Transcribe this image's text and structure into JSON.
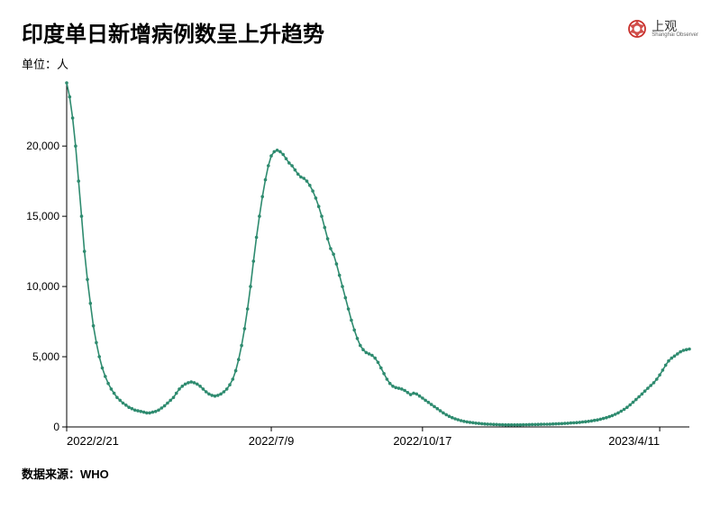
{
  "header": {
    "title": "印度单日新增病例数呈上升趋势",
    "logo_cn": "上观",
    "logo_en": "Shanghai Observer"
  },
  "unit_label": "单位：人",
  "source_label": "数据来源：WHO",
  "chart": {
    "type": "line",
    "line_color": "#2e8b6f",
    "line_width": 1.6,
    "marker_size": 1.8,
    "background_color": "#ffffff",
    "axis_color": "#000000",
    "y": {
      "min": 0,
      "max": 24500,
      "ticks": [
        0,
        5000,
        10000,
        15000,
        20000
      ],
      "tick_labels": [
        "0",
        "5,000",
        "10,000",
        "15,000",
        "20,000"
      ]
    },
    "x": {
      "min": 0,
      "max": 420,
      "ticks": [
        0,
        138,
        240,
        400
      ],
      "tick_labels": [
        "2022/2/21",
        "2022/7/9",
        "2022/10/17",
        "2023/4/11"
      ]
    },
    "data": [
      [
        0,
        24500
      ],
      [
        2,
        23500
      ],
      [
        4,
        22000
      ],
      [
        6,
        20000
      ],
      [
        8,
        17500
      ],
      [
        10,
        15000
      ],
      [
        12,
        12500
      ],
      [
        14,
        10500
      ],
      [
        16,
        8800
      ],
      [
        18,
        7200
      ],
      [
        20,
        6000
      ],
      [
        22,
        5000
      ],
      [
        24,
        4200
      ],
      [
        26,
        3600
      ],
      [
        28,
        3100
      ],
      [
        30,
        2700
      ],
      [
        32,
        2400
      ],
      [
        34,
        2100
      ],
      [
        36,
        1900
      ],
      [
        38,
        1700
      ],
      [
        40,
        1550
      ],
      [
        42,
        1400
      ],
      [
        44,
        1300
      ],
      [
        46,
        1200
      ],
      [
        48,
        1150
      ],
      [
        50,
        1100
      ],
      [
        52,
        1050
      ],
      [
        54,
        1000
      ],
      [
        56,
        1000
      ],
      [
        58,
        1050
      ],
      [
        60,
        1100
      ],
      [
        62,
        1200
      ],
      [
        64,
        1350
      ],
      [
        66,
        1500
      ],
      [
        68,
        1700
      ],
      [
        70,
        1900
      ],
      [
        72,
        2100
      ],
      [
        74,
        2400
      ],
      [
        76,
        2700
      ],
      [
        78,
        2900
      ],
      [
        80,
        3050
      ],
      [
        82,
        3150
      ],
      [
        84,
        3200
      ],
      [
        86,
        3150
      ],
      [
        88,
        3050
      ],
      [
        90,
        2900
      ],
      [
        92,
        2700
      ],
      [
        94,
        2500
      ],
      [
        96,
        2350
      ],
      [
        98,
        2250
      ],
      [
        100,
        2200
      ],
      [
        102,
        2250
      ],
      [
        104,
        2350
      ],
      [
        106,
        2500
      ],
      [
        108,
        2700
      ],
      [
        110,
        3000
      ],
      [
        112,
        3400
      ],
      [
        114,
        4000
      ],
      [
        116,
        4800
      ],
      [
        118,
        5800
      ],
      [
        120,
        7000
      ],
      [
        122,
        8400
      ],
      [
        124,
        10000
      ],
      [
        126,
        11800
      ],
      [
        128,
        13500
      ],
      [
        130,
        15000
      ],
      [
        132,
        16400
      ],
      [
        134,
        17600
      ],
      [
        136,
        18600
      ],
      [
        138,
        19300
      ],
      [
        140,
        19600
      ],
      [
        142,
        19700
      ],
      [
        144,
        19600
      ],
      [
        146,
        19400
      ],
      [
        148,
        19100
      ],
      [
        150,
        18800
      ],
      [
        152,
        18600
      ],
      [
        154,
        18300
      ],
      [
        156,
        18000
      ],
      [
        158,
        17800
      ],
      [
        160,
        17700
      ],
      [
        162,
        17500
      ],
      [
        164,
        17200
      ],
      [
        166,
        16800
      ],
      [
        168,
        16300
      ],
      [
        170,
        15700
      ],
      [
        172,
        15000
      ],
      [
        174,
        14200
      ],
      [
        176,
        13400
      ],
      [
        178,
        12700
      ],
      [
        180,
        12300
      ],
      [
        182,
        11600
      ],
      [
        184,
        10800
      ],
      [
        186,
        10000
      ],
      [
        188,
        9200
      ],
      [
        190,
        8400
      ],
      [
        192,
        7600
      ],
      [
        194,
        6900
      ],
      [
        196,
        6300
      ],
      [
        198,
        5800
      ],
      [
        200,
        5500
      ],
      [
        202,
        5300
      ],
      [
        204,
        5200
      ],
      [
        206,
        5100
      ],
      [
        208,
        4900
      ],
      [
        210,
        4600
      ],
      [
        212,
        4200
      ],
      [
        214,
        3800
      ],
      [
        216,
        3400
      ],
      [
        218,
        3100
      ],
      [
        220,
        2900
      ],
      [
        222,
        2800
      ],
      [
        224,
        2750
      ],
      [
        226,
        2700
      ],
      [
        228,
        2600
      ],
      [
        230,
        2450
      ],
      [
        232,
        2300
      ],
      [
        234,
        2400
      ],
      [
        236,
        2350
      ],
      [
        238,
        2200
      ],
      [
        240,
        2050
      ],
      [
        242,
        1900
      ],
      [
        244,
        1750
      ],
      [
        246,
        1600
      ],
      [
        248,
        1450
      ],
      [
        250,
        1300
      ],
      [
        252,
        1150
      ],
      [
        254,
        1000
      ],
      [
        256,
        870
      ],
      [
        258,
        760
      ],
      [
        260,
        660
      ],
      [
        262,
        580
      ],
      [
        264,
        510
      ],
      [
        266,
        450
      ],
      [
        268,
        400
      ],
      [
        270,
        360
      ],
      [
        272,
        330
      ],
      [
        274,
        300
      ],
      [
        276,
        270
      ],
      [
        278,
        250
      ],
      [
        280,
        230
      ],
      [
        282,
        210
      ],
      [
        284,
        200
      ],
      [
        286,
        190
      ],
      [
        288,
        180
      ],
      [
        290,
        170
      ],
      [
        292,
        160
      ],
      [
        294,
        155
      ],
      [
        296,
        150
      ],
      [
        298,
        150
      ],
      [
        300,
        150
      ],
      [
        302,
        150
      ],
      [
        304,
        150
      ],
      [
        306,
        150
      ],
      [
        308,
        155
      ],
      [
        310,
        160
      ],
      [
        312,
        165
      ],
      [
        314,
        170
      ],
      [
        316,
        175
      ],
      [
        318,
        180
      ],
      [
        320,
        185
      ],
      [
        322,
        190
      ],
      [
        324,
        195
      ],
      [
        326,
        200
      ],
      [
        328,
        210
      ],
      [
        330,
        220
      ],
      [
        332,
        230
      ],
      [
        334,
        240
      ],
      [
        336,
        250
      ],
      [
        338,
        265
      ],
      [
        340,
        280
      ],
      [
        342,
        295
      ],
      [
        344,
        310
      ],
      [
        346,
        330
      ],
      [
        348,
        350
      ],
      [
        350,
        375
      ],
      [
        352,
        400
      ],
      [
        354,
        430
      ],
      [
        356,
        465
      ],
      [
        358,
        500
      ],
      [
        360,
        550
      ],
      [
        362,
        600
      ],
      [
        364,
        660
      ],
      [
        366,
        730
      ],
      [
        368,
        810
      ],
      [
        370,
        900
      ],
      [
        372,
        1000
      ],
      [
        374,
        1120
      ],
      [
        376,
        1250
      ],
      [
        378,
        1400
      ],
      [
        380,
        1570
      ],
      [
        382,
        1760
      ],
      [
        384,
        1950
      ],
      [
        386,
        2150
      ],
      [
        388,
        2350
      ],
      [
        390,
        2550
      ],
      [
        392,
        2750
      ],
      [
        394,
        2950
      ],
      [
        396,
        3150
      ],
      [
        398,
        3400
      ],
      [
        400,
        3700
      ],
      [
        402,
        4050
      ],
      [
        404,
        4400
      ],
      [
        406,
        4700
      ],
      [
        408,
        4900
      ],
      [
        410,
        5050
      ],
      [
        412,
        5200
      ],
      [
        414,
        5350
      ],
      [
        416,
        5450
      ],
      [
        418,
        5500
      ],
      [
        420,
        5550
      ]
    ]
  }
}
